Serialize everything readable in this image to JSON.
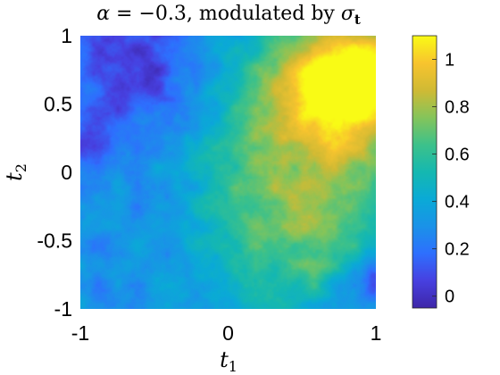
{
  "chart_data": {
    "type": "heatmap",
    "title_parts": {
      "alpha": "α",
      "eq": " = ",
      "value": "−0.3",
      "rest": ", modulated by ",
      "sigma": "σ",
      "sub": "t"
    },
    "xlabel": {
      "symbol": "t",
      "sub": "1"
    },
    "ylabel": {
      "symbol": "t",
      "sub": "2"
    },
    "xlim": [
      -1,
      1
    ],
    "ylim": [
      -1,
      1
    ],
    "xticks": [
      -1,
      0,
      1
    ],
    "yticks": [
      -1,
      -0.5,
      0,
      0.5,
      1
    ],
    "xtick_labels": [
      "-1",
      "0",
      "1"
    ],
    "ytick_labels": [
      "1",
      "0.5",
      "0",
      "-0.5",
      "-1"
    ],
    "colorbar": {
      "limits": [
        -0.05,
        1.1
      ],
      "ticks": [
        0,
        0.2,
        0.4,
        0.6,
        0.8,
        1
      ],
      "tick_labels": [
        "0",
        "0.2",
        "0.4",
        "0.6",
        "0.8",
        "1"
      ],
      "colormap": "parula"
    },
    "field_features": [
      {
        "kind": "high",
        "t1": 0.9,
        "t2": 0.7,
        "value": 1.05,
        "spread": 0.35
      },
      {
        "kind": "high",
        "t1": 0.55,
        "t2": 0.45,
        "value": 0.75,
        "spread": 0.45
      },
      {
        "kind": "high",
        "t1": 0.45,
        "t2": -0.45,
        "value": 0.72,
        "spread": 0.45
      },
      {
        "kind": "low",
        "t1": -0.6,
        "t2": 0.8,
        "value": 0.0,
        "spread": 0.3
      },
      {
        "kind": "low",
        "t1": -0.9,
        "t2": 0.25,
        "value": 0.05,
        "spread": 0.15
      },
      {
        "kind": "low",
        "t1": 0.95,
        "t2": -0.8,
        "value": 0.0,
        "spread": 0.15
      }
    ],
    "background_level": 0.3
  }
}
